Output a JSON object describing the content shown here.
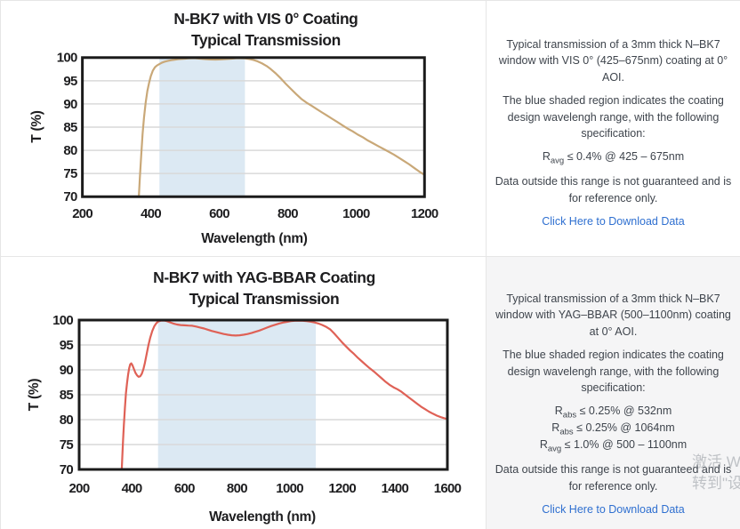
{
  "colors": {
    "axis": "#1b1b1b",
    "gridline": "#d9d9d9",
    "band": "#dce9f3",
    "curve_vis": "#c9a878",
    "curve_yag": "#df6156",
    "body_text": "#3e444c",
    "link": "#2e6fd0",
    "panel_gray": "#f5f5f6",
    "divider": "#e6e6e6",
    "watermark_gray": "#9aa0a6"
  },
  "chart_data": [
    {
      "type": "line",
      "title_line1": "N-BK7 with VIS 0° Coating",
      "title_line2": "Typical Transmission",
      "xlabel": "Wavelength (nm)",
      "ylabel": "T (%)",
      "xlim": [
        200,
        1200
      ],
      "ylim": [
        70,
        100
      ],
      "xticks": [
        200,
        400,
        600,
        800,
        1000,
        1200
      ],
      "yticks": [
        100,
        95,
        90,
        85,
        80,
        75,
        70
      ],
      "grid": "horizontal",
      "band": [
        425,
        675
      ],
      "band_color": "#dce9f3",
      "line_color": "#c9a878",
      "series": [
        {
          "name": "Typical Transmission",
          "points": [
            [
              365,
              70
            ],
            [
              368,
              74
            ],
            [
              372,
              79
            ],
            [
              376,
              83.5
            ],
            [
              380,
              87
            ],
            [
              385,
              90.3
            ],
            [
              390,
              92.8
            ],
            [
              395,
              94.6
            ],
            [
              400,
              96
            ],
            [
              406,
              97.2
            ],
            [
              412,
              97.9
            ],
            [
              418,
              98.3
            ],
            [
              425,
              98.6
            ],
            [
              432,
              98.9
            ],
            [
              440,
              99.1
            ],
            [
              450,
              99.3
            ],
            [
              460,
              99.45
            ],
            [
              470,
              99.55
            ],
            [
              480,
              99.65
            ],
            [
              490,
              99.72
            ],
            [
              500,
              99.78
            ],
            [
              510,
              99.83
            ],
            [
              520,
              99.86
            ],
            [
              530,
              99.85
            ],
            [
              545,
              99.78
            ],
            [
              560,
              99.68
            ],
            [
              575,
              99.6
            ],
            [
              590,
              99.58
            ],
            [
              605,
              99.62
            ],
            [
              620,
              99.7
            ],
            [
              635,
              99.78
            ],
            [
              650,
              99.84
            ],
            [
              662,
              99.86
            ],
            [
              675,
              99.82
            ],
            [
              688,
              99.68
            ],
            [
              700,
              99.48
            ],
            [
              712,
              99.2
            ],
            [
              725,
              98.75
            ],
            [
              738,
              98.2
            ],
            [
              750,
              97.55
            ],
            [
              765,
              96.6
            ],
            [
              780,
              95.5
            ],
            [
              795,
              94.3
            ],
            [
              810,
              93.2
            ],
            [
              825,
              92.1
            ],
            [
              840,
              91.1
            ],
            [
              855,
              90.3
            ],
            [
              870,
              89.6
            ],
            [
              885,
              88.9
            ],
            [
              900,
              88.2
            ],
            [
              915,
              87.5
            ],
            [
              930,
              86.8
            ],
            [
              945,
              86.1
            ],
            [
              960,
              85.4
            ],
            [
              975,
              84.7
            ],
            [
              990,
              84.1
            ],
            [
              1005,
              83.4
            ],
            [
              1020,
              82.8
            ],
            [
              1035,
              82.1
            ],
            [
              1050,
              81.5
            ],
            [
              1065,
              80.9
            ],
            [
              1080,
              80.3
            ],
            [
              1095,
              79.7
            ],
            [
              1110,
              79.1
            ],
            [
              1125,
              78.4
            ],
            [
              1140,
              77.7
            ],
            [
              1155,
              77
            ],
            [
              1170,
              76.2
            ],
            [
              1185,
              75.4
            ],
            [
              1200,
              74.7
            ]
          ]
        }
      ]
    },
    {
      "type": "line",
      "title_line1": "N-BK7 with YAG-BBAR Coating",
      "title_line2": "Typical Transmission",
      "xlabel": "Wavelength (nm)",
      "ylabel": "T (%)",
      "xlim": [
        200,
        1600
      ],
      "ylim": [
        70,
        100
      ],
      "xticks": [
        200,
        400,
        600,
        800,
        1000,
        1200,
        1400,
        1600
      ],
      "yticks": [
        100,
        95,
        90,
        85,
        80,
        75,
        70
      ],
      "grid": "horizontal",
      "band": [
        500,
        1100
      ],
      "band_color": "#dce9f3",
      "line_color": "#df6156",
      "series": [
        {
          "name": "Typical Transmission",
          "points": [
            [
              362,
              70
            ],
            [
              364,
              72.5
            ],
            [
              367,
              76
            ],
            [
              370,
              79
            ],
            [
              374,
              82.5
            ],
            [
              378,
              85.3
            ],
            [
              382,
              87.3
            ],
            [
              386,
              89
            ],
            [
              390,
              90.3
            ],
            [
              394,
              91.1
            ],
            [
              398,
              91.3
            ],
            [
              403,
              90.9
            ],
            [
              408,
              90.2
            ],
            [
              414,
              89.4
            ],
            [
              420,
              88.9
            ],
            [
              426,
              88.6
            ],
            [
              432,
              88.7
            ],
            [
              438,
              89.2
            ],
            [
              444,
              90.1
            ],
            [
              450,
              91.4
            ],
            [
              456,
              93
            ],
            [
              463,
              94.9
            ],
            [
              470,
              96.4
            ],
            [
              478,
              97.8
            ],
            [
              486,
              98.8
            ],
            [
              494,
              99.4
            ],
            [
              502,
              99.75
            ],
            [
              512,
              99.9
            ],
            [
              522,
              99.9
            ],
            [
              532,
              99.8
            ],
            [
              545,
              99.55
            ],
            [
              558,
              99.3
            ],
            [
              572,
              99.1
            ],
            [
              586,
              99
            ],
            [
              600,
              98.95
            ],
            [
              615,
              98.9
            ],
            [
              630,
              98.85
            ],
            [
              645,
              98.7
            ],
            [
              660,
              98.5
            ],
            [
              675,
              98.3
            ],
            [
              690,
              98.05
            ],
            [
              705,
              97.8
            ],
            [
              720,
              97.6
            ],
            [
              735,
              97.4
            ],
            [
              750,
              97.2
            ],
            [
              765,
              97.05
            ],
            [
              780,
              96.95
            ],
            [
              795,
              96.9
            ],
            [
              810,
              96.95
            ],
            [
              825,
              97.05
            ],
            [
              840,
              97.2
            ],
            [
              855,
              97.4
            ],
            [
              870,
              97.65
            ],
            [
              885,
              97.9
            ],
            [
              900,
              98.2
            ],
            [
              915,
              98.5
            ],
            [
              930,
              98.8
            ],
            [
              945,
              99.05
            ],
            [
              960,
              99.3
            ],
            [
              975,
              99.5
            ],
            [
              990,
              99.65
            ],
            [
              1005,
              99.78
            ],
            [
              1020,
              99.85
            ],
            [
              1035,
              99.88
            ],
            [
              1050,
              99.85
            ],
            [
              1065,
              99.78
            ],
            [
              1080,
              99.68
            ],
            [
              1095,
              99.52
            ],
            [
              1110,
              99.3
            ],
            [
              1125,
              99
            ],
            [
              1140,
              98.6
            ],
            [
              1155,
              98.1
            ],
            [
              1170,
              97.3
            ],
            [
              1185,
              96.4
            ],
            [
              1200,
              95.5
            ],
            [
              1215,
              94.7
            ],
            [
              1230,
              93.9
            ],
            [
              1245,
              93.2
            ],
            [
              1260,
              92.4
            ],
            [
              1275,
              91.7
            ],
            [
              1290,
              91
            ],
            [
              1305,
              90.3
            ],
            [
              1320,
              89.7
            ],
            [
              1335,
              89
            ],
            [
              1350,
              88.3
            ],
            [
              1365,
              87.6
            ],
            [
              1380,
              87
            ],
            [
              1395,
              86.5
            ],
            [
              1410,
              86.1
            ],
            [
              1425,
              85.6
            ],
            [
              1440,
              85
            ],
            [
              1455,
              84.4
            ],
            [
              1470,
              83.8
            ],
            [
              1485,
              83.2
            ],
            [
              1500,
              82.6
            ],
            [
              1515,
              82.1
            ],
            [
              1530,
              81.6
            ],
            [
              1545,
              81.2
            ],
            [
              1560,
              80.8
            ],
            [
              1575,
              80.5
            ],
            [
              1590,
              80.25
            ],
            [
              1600,
              80.15
            ]
          ]
        }
      ]
    }
  ],
  "panels": [
    {
      "p1": "Typical transmission of a 3mm thick N–BK7 window with VIS 0° (425–675nm) coating at 0° AOI.",
      "p2": "The blue shaded region indicates the coating design wavelengh range, with the following specification:",
      "specs": [
        {
          "base": "R",
          "sub": "avg",
          "rest": "≤ 0.4% @ 425 – 675nm"
        }
      ],
      "p3": "Data outside this range is not guaranteed and is for reference only.",
      "link": "Click Here to Download Data"
    },
    {
      "p1": "Typical transmission of a 3mm thick N–BK7 window with YAG–BBAR (500–1100nm) coating at 0° AOI.",
      "p2": "The blue shaded region indicates the coating design wavelengh range, with the following specification:",
      "specs": [
        {
          "base": "R",
          "sub": "abs",
          "rest": "≤ 0.25% @ 532nm"
        },
        {
          "base": "R",
          "sub": "abs",
          "rest": "≤ 0.25% @ 1064nm"
        },
        {
          "base": "R",
          "sub": "avg",
          "rest": "≤ 1.0% @ 500 – 1100nm"
        }
      ],
      "p3": "Data outside this range is not guaranteed and is for reference only.",
      "link": "Click Here to Download Data"
    }
  ],
  "watermark": {
    "line1": "激活 W",
    "line2": "转到\"设"
  }
}
